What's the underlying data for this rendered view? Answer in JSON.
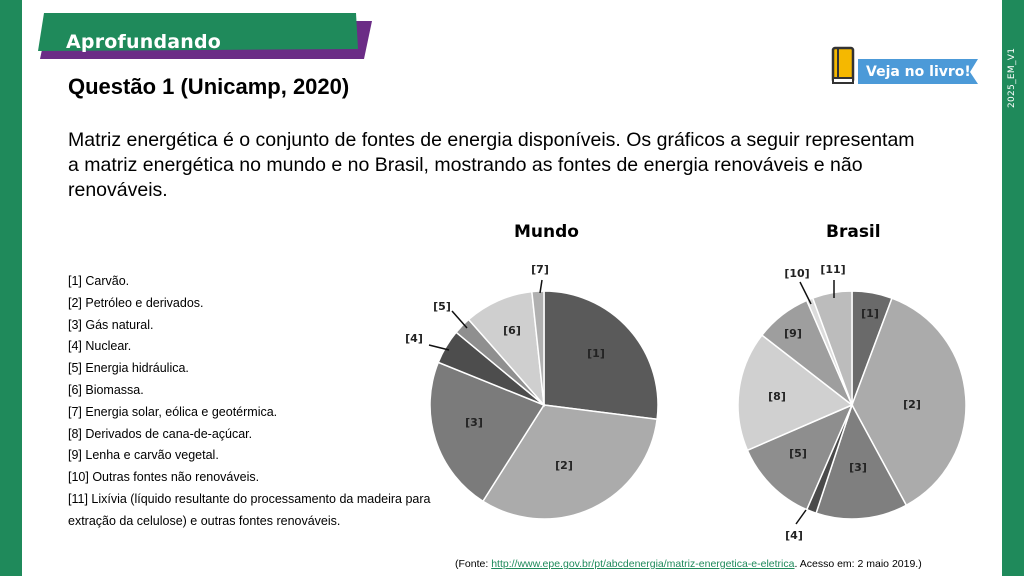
{
  "header": {
    "banner": "Aprofundando",
    "vertical_tag": "2025_EM_V1",
    "book_button": "Veja no livro!",
    "colors": {
      "green": "#1f8a5b",
      "purple": "#6b2c86",
      "yellow": "#f5b800",
      "blue": "#4c9ad8"
    }
  },
  "question": {
    "title": "Questão 1 (Unicamp, 2020)",
    "intro": "Matriz energética é o conjunto de fontes de energia disponíveis. Os gráficos a seguir representam a matriz energética no mundo e no Brasil, mostrando as fontes de energia renováveis e não renováveis."
  },
  "legend": [
    "[1] Carvão.",
    "[2] Petróleo e derivados.",
    "[3] Gás natural.",
    "[4] Nuclear.",
    "[5] Energia hidráulica.",
    "[6] Biomassa.",
    "[7] Energia solar, eólica e geotérmica.",
    "[8] Derivados de cana-de-açúcar.",
    "[9] Lenha e carvão vegetal.",
    "[10] Outras fontes não renováveis.",
    "[11] Lixívia (líquido resultante do processamento da madeira para",
    "extração da celulose) e outras fontes renováveis."
  ],
  "chart_data": [
    {
      "type": "pie",
      "title": "Mundo",
      "slices": [
        {
          "label": "[1]",
          "value": 27.0,
          "color": "#5a5a5a"
        },
        {
          "label": "[2]",
          "value": 32.0,
          "color": "#ababab"
        },
        {
          "label": "[3]",
          "value": 22.1,
          "color": "#7b7b7b"
        },
        {
          "label": "[4]",
          "value": 4.9,
          "color": "#4d4d4d"
        },
        {
          "label": "[5]",
          "value": 2.5,
          "color": "#8f8f8f"
        },
        {
          "label": "[6]",
          "value": 9.8,
          "color": "#cfcfcf"
        },
        {
          "label": "[7]",
          "value": 1.7,
          "color": "#b0b0b0"
        }
      ]
    },
    {
      "type": "pie",
      "title": "Brasil",
      "slices": [
        {
          "label": "[1]",
          "value": 5.7,
          "color": "#6a6a6a"
        },
        {
          "label": "[2]",
          "value": 36.4,
          "color": "#ababab"
        },
        {
          "label": "[3]",
          "value": 13.0,
          "color": "#7f7f7f"
        },
        {
          "label": "[4]",
          "value": 1.4,
          "color": "#4a4a4a"
        },
        {
          "label": "[5]",
          "value": 12.0,
          "color": "#8e8e8e"
        },
        {
          "label": "[8]",
          "value": 17.0,
          "color": "#d0d0d0"
        },
        {
          "label": "[9]",
          "value": 8.0,
          "color": "#9e9e9e"
        },
        {
          "label": "[10]",
          "value": 0.9,
          "color": "#dcdcdc"
        },
        {
          "label": "[11]",
          "value": 5.6,
          "color": "#bcbcbc"
        }
      ]
    }
  ],
  "source": {
    "prefix": "(Fonte: ",
    "link": "http://www.epe.gov.br/pt/abcdenergia/matriz-energetica-e-eletrica",
    "suffix": ". Acesso em: 2 maio 2019.)"
  }
}
